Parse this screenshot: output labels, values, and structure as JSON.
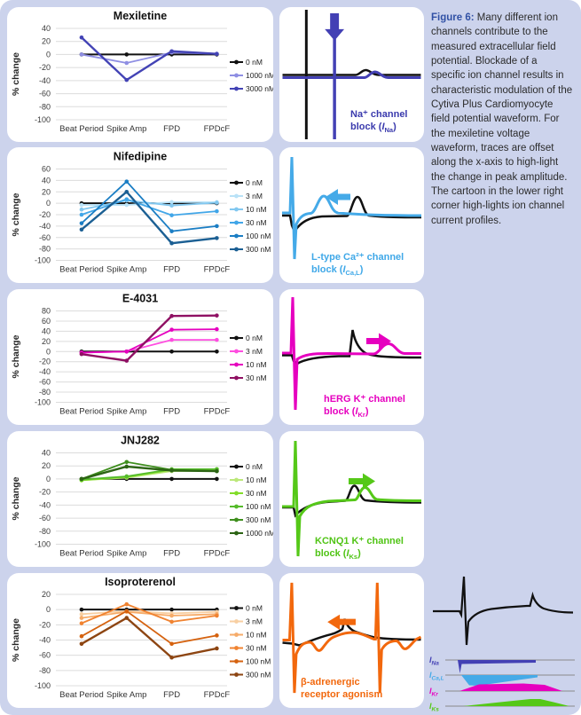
{
  "page": {
    "background": "#ccd3ec"
  },
  "caption": {
    "prefix": "Figure 6:",
    "accent": "#3151a5",
    "body": " Many different ion channels contribute to the measured extracellular field potential.  Blockade of a specific ion channel results in characteristic modulation of the Cytiva Plus Cardiomyocyte field potential waveform. For the mexiletine voltage waveform, traces are offset along the x-axis to high-light the change in peak amplitude.  The cartoon in the lower right corner high-lights ion channel current profiles."
  },
  "chart_data": [
    {
      "type": "line",
      "title": "Mexiletine",
      "ylabel": "% change",
      "ylim": [
        -100,
        40
      ],
      "ytick_step": 20,
      "grid": true,
      "legend_position": "right",
      "categories": [
        "Beat Period",
        "Spike Amp",
        "FPD",
        "FPDcF"
      ],
      "series": [
        {
          "name": "0 nM",
          "color": "#111111",
          "values": [
            0,
            0,
            0,
            0
          ]
        },
        {
          "name": "1000 nM",
          "color": "#8f8fe3",
          "values": [
            0,
            -13,
            3,
            1
          ]
        },
        {
          "name": "3000 nM",
          "color": "#4343b5",
          "values": [
            26,
            -39,
            5,
            1
          ]
        }
      ]
    },
    {
      "type": "line",
      "title": "Nifedipine",
      "ylabel": "% change",
      "ylim": [
        -100,
        60
      ],
      "ytick_step": 20,
      "grid": true,
      "legend_position": "right",
      "categories": [
        "Beat Period",
        "Spike Amp",
        "FPD",
        "FPDcF"
      ],
      "series": [
        {
          "name": "0 nM",
          "color": "#111111",
          "values": [
            0,
            0,
            0,
            0
          ]
        },
        {
          "name": "3 nM",
          "color": "#b9e2f7",
          "values": [
            -3,
            -3,
            2,
            2
          ]
        },
        {
          "name": "10 nM",
          "color": "#82c8f0",
          "values": [
            -11,
            5,
            -4,
            1
          ]
        },
        {
          "name": "30 nM",
          "color": "#41a6e8",
          "values": [
            -20,
            7,
            -21,
            -14
          ]
        },
        {
          "name": "100 nM",
          "color": "#1b7ec4",
          "values": [
            -35,
            38,
            -49,
            -40
          ]
        },
        {
          "name": "300 nM",
          "color": "#1b5f93",
          "values": [
            -46,
            20,
            -70,
            -61
          ]
        }
      ]
    },
    {
      "type": "line",
      "title": "E-4031",
      "ylabel": "% change",
      "ylim": [
        -100,
        80
      ],
      "ytick_step": 20,
      "grid": true,
      "legend_position": "right",
      "categories": [
        "Beat Period",
        "Spike Amp",
        "FPD",
        "FPDcF"
      ],
      "series": [
        {
          "name": "0 nM",
          "color": "#111111",
          "values": [
            0,
            0,
            0,
            0
          ]
        },
        {
          "name": "3 nM",
          "color": "#ff4de0",
          "values": [
            -2,
            0,
            23,
            23
          ]
        },
        {
          "name": "10 nM",
          "color": "#e600bf",
          "values": [
            -2,
            0,
            43,
            44
          ]
        },
        {
          "name": "30 nM",
          "color": "#8f1063",
          "values": [
            -5,
            -18,
            70,
            71
          ]
        }
      ]
    },
    {
      "type": "line",
      "title": "JNJ282",
      "ylabel": "% change",
      "ylim": [
        -100,
        40
      ],
      "ytick_step": 20,
      "grid": true,
      "legend_position": "right",
      "categories": [
        "Beat Period",
        "Spike Amp",
        "FPD",
        "FPDcF"
      ],
      "series": [
        {
          "name": "0 nM",
          "color": "#111111",
          "values": [
            0,
            0,
            0,
            0
          ]
        },
        {
          "name": "10 nM",
          "color": "#bce87a",
          "values": [
            -2,
            2,
            12,
            13
          ]
        },
        {
          "name": "30 nM",
          "color": "#82dc28",
          "values": [
            -2,
            3,
            14,
            15
          ]
        },
        {
          "name": "100 nM",
          "color": "#55bb2b",
          "values": [
            -1,
            4,
            15,
            15
          ]
        },
        {
          "name": "300 nM",
          "color": "#3f8f1e",
          "values": [
            0,
            26,
            14,
            12
          ]
        },
        {
          "name": "1000 nM",
          "color": "#2c6414",
          "values": [
            0,
            19,
            13,
            12
          ]
        }
      ]
    },
    {
      "type": "line",
      "title": "Isoproterenol",
      "ylabel": "% change",
      "ylim": [
        -100,
        20
      ],
      "ytick_step": 20,
      "grid": true,
      "legend_position": "right",
      "categories": [
        "Beat Period",
        "Spike Amp",
        "FPD",
        "FPDcF"
      ],
      "series": [
        {
          "name": "0 nM",
          "color": "#111111",
          "values": [
            0,
            0,
            0,
            0
          ]
        },
        {
          "name": "3 nM",
          "color": "#f8cfa2",
          "values": [
            -6,
            -2,
            -5,
            -3
          ]
        },
        {
          "name": "10 nM",
          "color": "#f6ab69",
          "values": [
            -11,
            -3,
            -8,
            -6
          ]
        },
        {
          "name": "30 nM",
          "color": "#f08331",
          "values": [
            -18,
            7,
            -16,
            -8
          ]
        },
        {
          "name": "100 nM",
          "color": "#d5620f",
          "values": [
            -35,
            -2,
            -45,
            -34
          ]
        },
        {
          "name": "300 nM",
          "color": "#8d4512",
          "values": [
            -45,
            -11,
            -63,
            -51
          ]
        }
      ]
    }
  ],
  "waveforms": [
    {
      "name": "sodium-block",
      "color": "#4340b4",
      "label_color": "#3a3aad",
      "label1": "Na⁺ channel",
      "label2_pre": "block  (",
      "symbol": "I",
      "sub": "Na",
      "label2_post": ")",
      "arrow": "down"
    },
    {
      "name": "calcium-block",
      "color": "#45aae8",
      "label_color": "#3fa8e8",
      "label1": "L-type Ca²⁺ channel",
      "label2_pre": "block  (",
      "symbol": "I",
      "sub": "Ca,L",
      "label2_post": ")",
      "arrow": "left"
    },
    {
      "name": "herg-block",
      "color": "#e600bf",
      "label_color": "#e600bf",
      "label1": "hERG K⁺ channel",
      "label2_pre": "block  (",
      "symbol": "I",
      "sub": "Kr",
      "label2_post": ")",
      "arrow": "right"
    },
    {
      "name": "kcnq1-block",
      "color": "#55c818",
      "label_color": "#50c415",
      "label1": "KCNQ1 K⁺ channel",
      "label2_pre": "block  (",
      "symbol": "I",
      "sub": "Ks",
      "label2_post": ")",
      "arrow": "right"
    },
    {
      "name": "beta-adrenergic",
      "color": "#f2680d",
      "label_color": "#f2680d",
      "label1": "β-adrenergic",
      "label2_pre": "receptor agonism",
      "symbol": "",
      "sub": "",
      "label2_post": "",
      "arrow": "left"
    }
  ],
  "cartoon": {
    "currents": [
      {
        "symbol": "I",
        "sub": "Na",
        "color": "#4340b4"
      },
      {
        "symbol": "I",
        "sub": "Ca,L",
        "color": "#45aae8"
      },
      {
        "symbol": "I",
        "sub": "Kr",
        "color": "#e600bf"
      },
      {
        "symbol": "I",
        "sub": "Ks",
        "color": "#55c818"
      }
    ]
  }
}
